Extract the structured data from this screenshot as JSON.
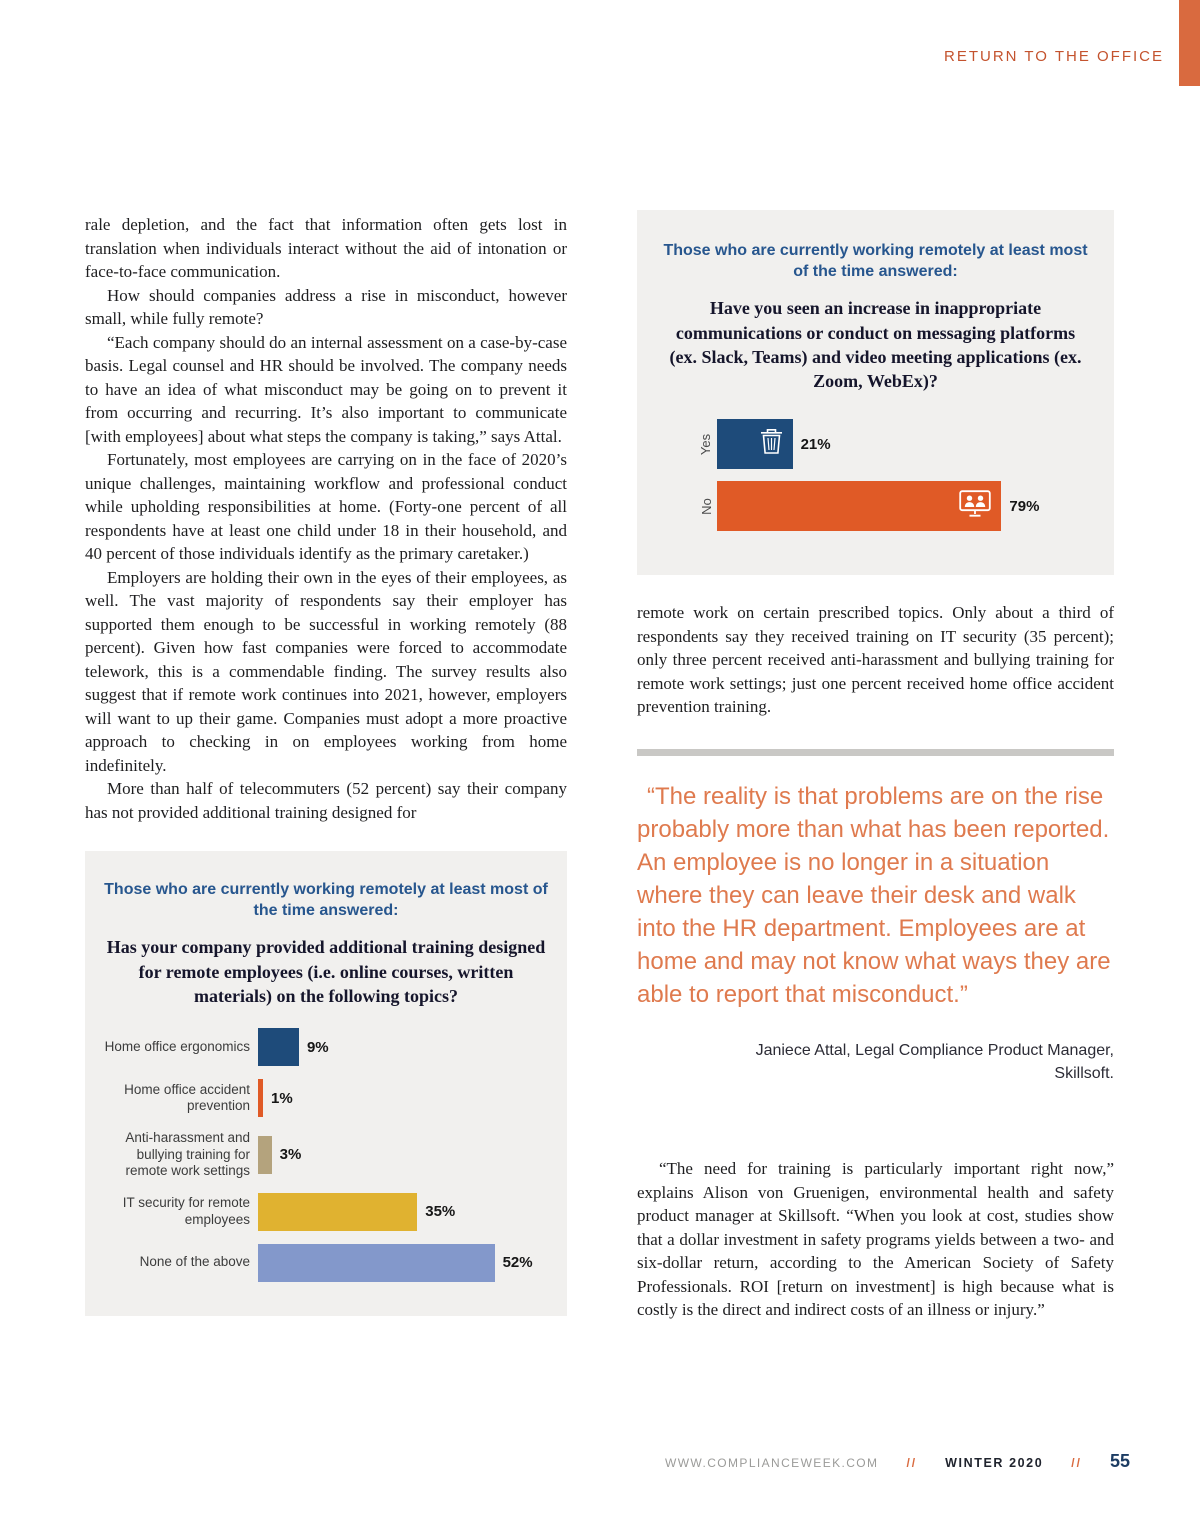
{
  "page": {
    "header_tag": "RETURN TO THE OFFICE",
    "footer": {
      "site": "WWW.COMPLIANCEWEEK.COM",
      "separator": "//",
      "issue": "WINTER 2020",
      "page_number": "55"
    }
  },
  "colors": {
    "header_accent": "#c4532e",
    "edge_accent": "#d96a3f",
    "chart_background": "#f1f0ee",
    "chart_eyebrow_blue": "#27568e",
    "quote_orange": "#df7a4e",
    "divider_gray": "#c9c8c5",
    "bar_navy": "#1e4b7a",
    "bar_orange": "#e05a26",
    "bar_tan": "#b4a37d",
    "bar_gold": "#e0b230",
    "bar_periwinkle": "#8398cb"
  },
  "left_column": {
    "paragraphs": [
      "rale depletion, and the fact that information often gets lost in translation when individuals interact without the aid of intonation or face-to-face communication.",
      "How should companies address a rise in misconduct, however small, while fully remote?",
      "“Each company should do an internal assessment on a case-by-case basis. Legal counsel and HR should be involved. The company needs to have an idea of what misconduct may be going on to prevent it from occurring and recurring. It’s also important to communicate [with employees] about what steps the company is taking,” says Attal.",
      "Fortunately, most employees are carrying on in the face of 2020’s unique challenges, maintaining workflow and professional conduct while upholding responsibilities at home. (Forty-one percent of all respondents have at least one child under 18 in their household, and 40 percent of those individuals identify as the primary caretaker.)",
      "Employers are holding their own in the eyes of their employees, as well. The vast majority of respondents say their employer has supported them enough to be successful in working remotely (88 percent). Given how fast companies were forced to accommodate telework, this is a commendable finding. The survey results also suggest that if remote work continues into 2021, however, employers will want to up their game. Companies must adopt a more proactive approach to checking in on employees working from home indefinitely.",
      "More than half of telecommuters (52 percent) say their company has not provided additional training designed for"
    ]
  },
  "right_column": {
    "continuation_paragraph": "remote work on certain prescribed topics. Only about a third of respondents say they received training on IT security (35 percent); only three percent received anti-harassment and bullying training for remote work settings; just one percent received home office accident prevention training.",
    "pull_quote": "“The reality is that problems are on the rise probably more than what has been reported. An employee is no longer in a situation where they can leave their desk and walk into the HR department. Employees are at home and may not know what ways they are able to report that misconduct.”",
    "attribution_line1": "Janiece Attal, Legal Compliance Product Manager,",
    "attribution_line2": "Skillsoft.",
    "closing_paragraph": "“The need for training is particularly important right now,” explains Alison von Gruenigen, environmental health and safety product manager at Skillsoft. “When you look at cost, studies show that a dollar investment in safety programs yields between a two- and six-dollar return, according to the American Society of Safety Professionals. ROI [return on investment] is high because what is costly is the direct and indirect costs of an illness or injury.”"
  },
  "chart_data": [
    {
      "type": "bar",
      "orientation": "horizontal",
      "eyebrow": "Those who are currently working remotely at least most of the time answered:",
      "title": "Have you seen an increase in inappropriate communications or conduct on messaging platforms (ex. Slack, Teams) and video meeting applications (ex. Zoom, WebEx)?",
      "categories": [
        "Yes",
        "No"
      ],
      "values": [
        21,
        79
      ],
      "value_labels": [
        "21%",
        "79%"
      ],
      "bar_colors": [
        "#1e4b7a",
        "#e05a26"
      ],
      "icons": [
        "trash-icon",
        "video-meeting-icon"
      ],
      "xlim": [
        0,
        100
      ],
      "legend": "none",
      "grid": false
    },
    {
      "type": "bar",
      "orientation": "horizontal",
      "eyebrow": "Those who are currently working remotely at least most of the time answered:",
      "title": "Has your company provided additional training designed for remote employees (i.e. online courses, written materials) on the following topics?",
      "categories": [
        "Home office ergonomics",
        "Home office accident prevention",
        "Anti-harassment and bullying training for remote work settings",
        "IT security for remote employees",
        "None of the above"
      ],
      "values": [
        9,
        1,
        3,
        35,
        52
      ],
      "value_labels": [
        "9%",
        "1%",
        "3%",
        "35%",
        "52%"
      ],
      "bar_colors": [
        "#1e4b7a",
        "#e05a26",
        "#b4a37d",
        "#e0b230",
        "#8398cb"
      ],
      "xlim": [
        0,
        100
      ],
      "legend": "none",
      "grid": false
    }
  ]
}
